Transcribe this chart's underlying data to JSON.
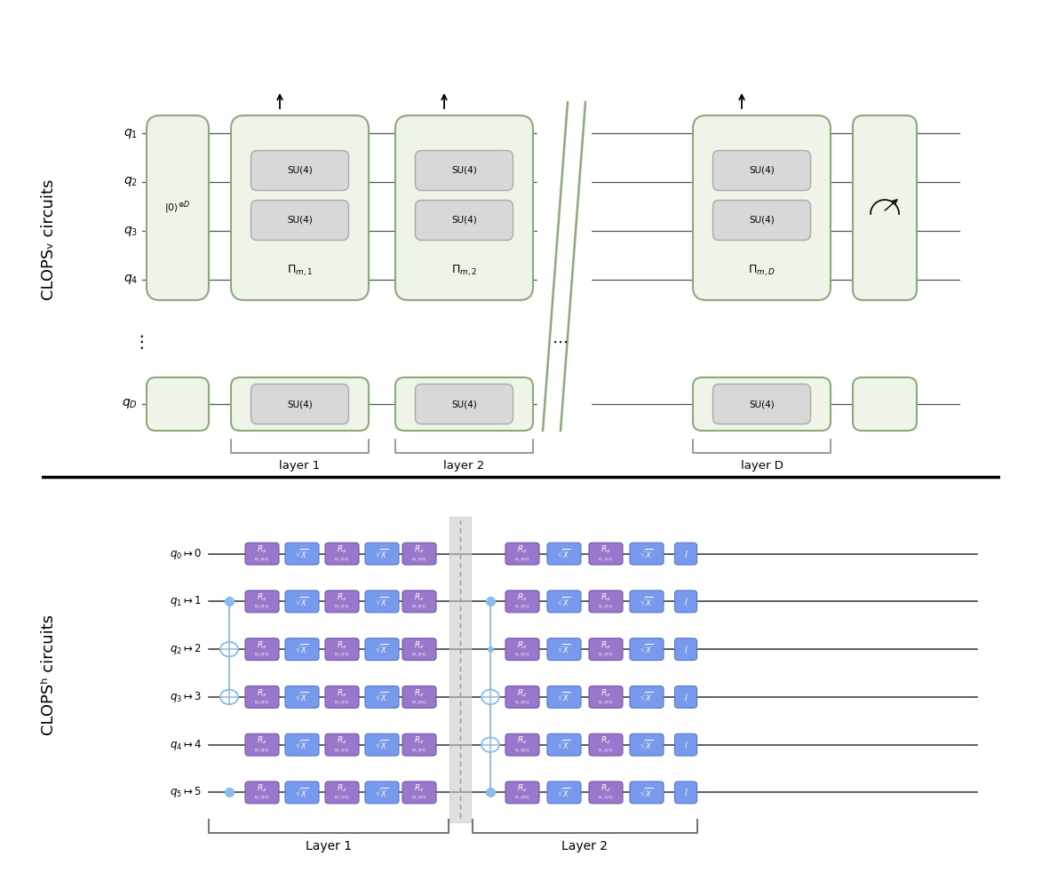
{
  "bg_color": "#ffffff",
  "top_label": "CLOPSᵥ circuits",
  "bottom_label": "CLOPSʰ circuits",
  "green_color": "#8aaa7a",
  "green_fill": "#eef5e8",
  "gray_fill": "#d8d8d8",
  "gray_stroke": "#aaaaaa",
  "purple_fill": "#9977cc",
  "purple_edge": "#7755aa",
  "blue_fill": "#7799ee",
  "blue_edge": "#5577cc",
  "cnot_color": "#88bbee",
  "wire_color": "#444444",
  "layer1_label": "layer 1",
  "layer2_label": "layer 2",
  "layerD_label": "layer D",
  "bottom_layer1": "Layer 1",
  "bottom_layer2": "Layer 2",
  "qubit_labels_top": [
    "$q_1$",
    "$q_2$",
    "$q_3$",
    "$q_4$",
    "$q_D$"
  ],
  "qubit_ys_top": [
    3.9,
    3.35,
    2.8,
    2.25,
    0.85
  ],
  "qubit_labels_bottom": [
    "$q_0 \\mapsto 0$",
    "$q_1 \\mapsto 1$",
    "$q_2 \\mapsto 2$",
    "$q_3 \\mapsto 3$",
    "$q_4 \\mapsto 4$",
    "$q_5 \\mapsto 5$"
  ],
  "qubit_ys_bottom": [
    4.55,
    3.9,
    3.25,
    2.6,
    1.95,
    1.3
  ],
  "sublabels_l1": [
    "L0_0[0]",
    "L0_1[0]",
    "L0_2[0]",
    "L0_0[1]",
    "L0_1[1]",
    "L0_2[1]",
    "L0_0[3]",
    "L0_1[3]",
    "L0_2[3]",
    "L0_0[5]",
    "L0_1[5]",
    "L0_2[5]",
    "L0_0[2]",
    "L0_1[2]",
    "L0_2[2]",
    "L0_0[0]",
    "L0_1[0]",
    "L0_2[0]"
  ],
  "sublabels_l2": [
    "L1_0[0]",
    "L1_1[0]",
    "L1_0[1]",
    "L1_1[1]",
    "L1_0[3]",
    "L1_1[3]",
    "L1_0[5]",
    "L1_1[5]",
    "L1_0[2]",
    "L1_1[2]",
    "L1_0[0]",
    "L1_1[0]"
  ]
}
